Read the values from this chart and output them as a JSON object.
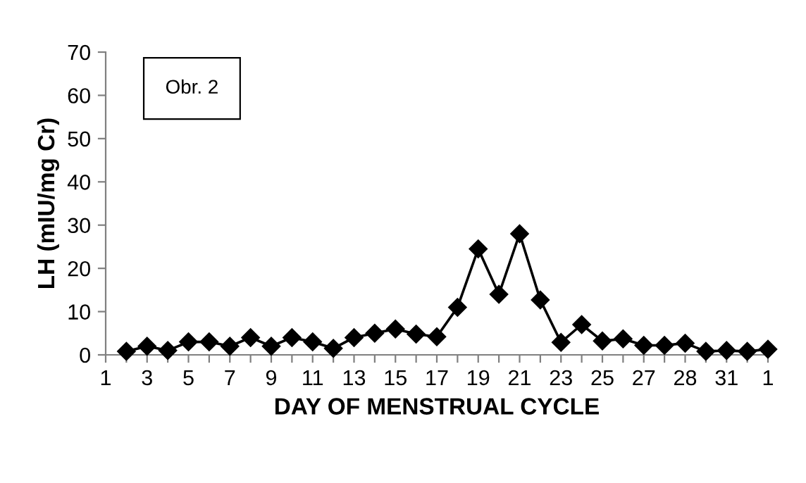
{
  "chart_data": {
    "type": "line",
    "xlabel": "DAY OF MENSTRUAL CYCLE",
    "ylabel": "LH (mIU/mg Cr)",
    "annotations": [
      "Obr. 2"
    ],
    "categories": [
      "1",
      null,
      "3",
      null,
      "5",
      null,
      "7",
      null,
      "9",
      null,
      "11",
      null,
      "13",
      null,
      "15",
      null,
      "17",
      null,
      "19",
      null,
      "21",
      null,
      "23",
      null,
      "25",
      null,
      "27",
      null,
      "28",
      null,
      "31",
      null,
      "1"
    ],
    "series": [
      {
        "color": "#000000",
        "values": [
          null,
          0.8,
          2,
          1,
          3,
          3,
          2,
          4,
          2,
          4,
          3,
          1.5,
          4,
          5,
          6,
          4.8,
          4.2,
          11,
          24.5,
          14,
          28,
          12.7,
          2.9,
          7,
          3.2,
          3.7,
          2.2,
          2.2,
          2.7,
          0.8,
          1,
          0.8,
          1.3
        ]
      }
    ],
    "ylim": [
      0,
      70
    ],
    "yticks": [
      0,
      10,
      20,
      30,
      40,
      50,
      60,
      70
    ],
    "grid": false,
    "legend": false,
    "marker": "diamond",
    "line_style": "solid"
  }
}
